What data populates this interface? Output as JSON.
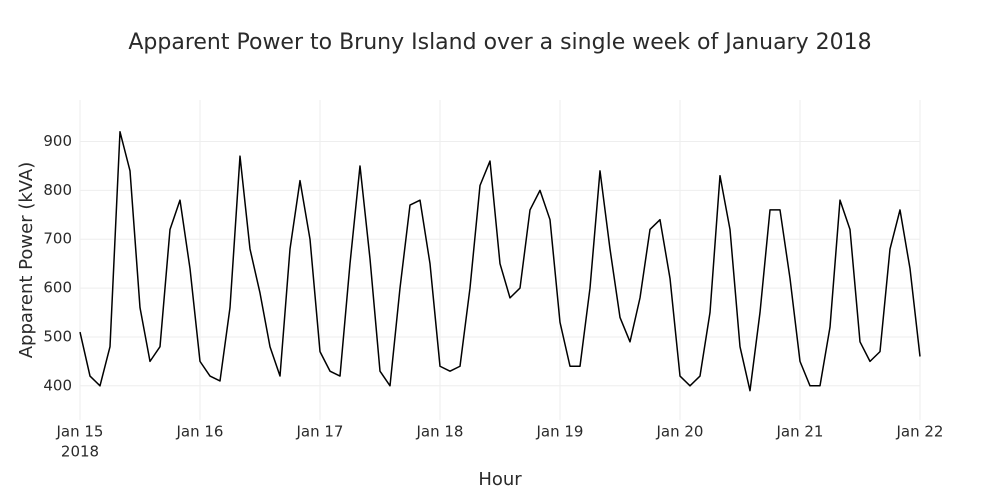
{
  "chart_data": {
    "type": "line",
    "title": "Apparent Power to Bruny Island over a single week of January 2018",
    "x_label": "Hour",
    "y_label": "Apparent Power (kVA)",
    "x": [
      0,
      2,
      4,
      6,
      8,
      10,
      12,
      14,
      16,
      18,
      20,
      22,
      24,
      26,
      28,
      30,
      32,
      34,
      36,
      38,
      40,
      42,
      44,
      46,
      48,
      50,
      52,
      54,
      56,
      58,
      60,
      62,
      64,
      66,
      68,
      70,
      72,
      74,
      76,
      78,
      80,
      82,
      84,
      86,
      88,
      90,
      92,
      94,
      96,
      98,
      100,
      102,
      104,
      106,
      108,
      110,
      112,
      114,
      116,
      118,
      120,
      122,
      124,
      126,
      128,
      130,
      132,
      134,
      136,
      138,
      140,
      142,
      144,
      146,
      148,
      150,
      152,
      154,
      156,
      158,
      160,
      162,
      164,
      166,
      168
    ],
    "series": [
      {
        "name": "Apparent Power",
        "color": "#000000",
        "values": [
          510,
          420,
          400,
          480,
          920,
          840,
          560,
          450,
          480,
          720,
          780,
          640,
          450,
          420,
          410,
          560,
          870,
          680,
          590,
          480,
          420,
          680,
          820,
          700,
          470,
          430,
          420,
          650,
          850,
          660,
          430,
          400,
          600,
          770,
          780,
          650,
          440,
          430,
          440,
          600,
          810,
          860,
          650,
          580,
          600,
          760,
          800,
          740,
          530,
          440,
          440,
          600,
          840,
          680,
          540,
          490,
          580,
          720,
          740,
          620,
          420,
          400,
          420,
          550,
          830,
          720,
          480,
          390,
          550,
          760,
          760,
          620,
          450,
          400,
          400,
          520,
          780,
          720,
          490,
          450,
          470,
          680,
          760,
          640,
          460
        ]
      }
    ],
    "xlim": [
      0,
      168
    ],
    "xticks": [
      {
        "value": 0,
        "label": "Jan 15"
      },
      {
        "value": 24,
        "label": "Jan 16"
      },
      {
        "value": 48,
        "label": "Jan 17"
      },
      {
        "value": 72,
        "label": "Jan 18"
      },
      {
        "value": 96,
        "label": "Jan 19"
      },
      {
        "value": 120,
        "label": "Jan 20"
      },
      {
        "value": 144,
        "label": "Jan 21"
      },
      {
        "value": 168,
        "label": "Jan 22"
      }
    ],
    "xtick_year": "2018",
    "ylim": [
      330,
      985
    ],
    "yticks": [
      400,
      500,
      600,
      700,
      800,
      900
    ],
    "grid": true
  }
}
